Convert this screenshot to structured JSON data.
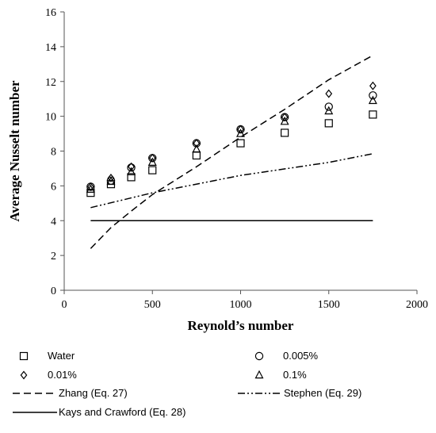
{
  "chart_data": {
    "type": "scatter",
    "xlabel": "Reynold’s number",
    "ylabel": "Average Nusselt number",
    "xlim": [
      0,
      2000
    ],
    "ylim": [
      0,
      16
    ],
    "x_ticks": [
      "0",
      "500",
      "1000",
      "1500",
      "2000"
    ],
    "y_ticks": [
      "0",
      "2",
      "4",
      "6",
      "8",
      "10",
      "12",
      "14",
      "16"
    ],
    "grid": false,
    "legend_position": "bottom",
    "series": [
      {
        "name": "Water",
        "kind": "marker",
        "marker": "square",
        "x": [
          150,
          265,
          380,
          500,
          750,
          1000,
          1250,
          1500,
          1750
        ],
        "y": [
          5.6,
          6.1,
          6.5,
          6.9,
          7.75,
          8.45,
          9.05,
          9.6,
          10.1
        ]
      },
      {
        "name": "0.005%",
        "kind": "marker",
        "marker": "circle",
        "x": [
          150,
          265,
          380,
          500,
          750,
          1000,
          1250,
          1500,
          1750
        ],
        "y": [
          5.95,
          6.3,
          7.05,
          7.6,
          8.45,
          9.25,
          9.95,
          10.55,
          11.2
        ]
      },
      {
        "name": "0.01%",
        "kind": "marker",
        "marker": "diamond",
        "x": [
          150,
          265,
          380,
          500,
          750,
          1000,
          1250,
          1500,
          1750
        ],
        "y": [
          5.95,
          6.45,
          7.1,
          7.6,
          8.45,
          9.25,
          9.95,
          11.3,
          11.75
        ]
      },
      {
        "name": "0.1%",
        "kind": "marker",
        "marker": "triangle",
        "x": [
          150,
          265,
          380,
          500,
          750,
          1000,
          1250,
          1500,
          1750
        ],
        "y": [
          5.8,
          6.25,
          6.8,
          7.35,
          8.1,
          9.0,
          9.7,
          10.3,
          10.9
        ]
      },
      {
        "name": "Zhang (Eq. 27)",
        "kind": "line",
        "dash": "dashed",
        "x": [
          150,
          265,
          380,
          500,
          750,
          1000,
          1250,
          1500,
          1750
        ],
        "y": [
          2.4,
          3.6,
          4.55,
          5.5,
          7.1,
          8.8,
          10.4,
          12.1,
          13.5
        ]
      },
      {
        "name": "Stephen (Eq. 29)",
        "kind": "line",
        "dash": "dashdotdot",
        "x": [
          150,
          500,
          1000,
          1500,
          1750
        ],
        "y": [
          4.75,
          5.6,
          6.6,
          7.35,
          7.85
        ]
      },
      {
        "name": "Kays and Crawford (Eq. 28)",
        "kind": "line",
        "dash": "solid",
        "x": [
          150,
          1750
        ],
        "y": [
          4.0,
          4.0
        ]
      }
    ]
  }
}
